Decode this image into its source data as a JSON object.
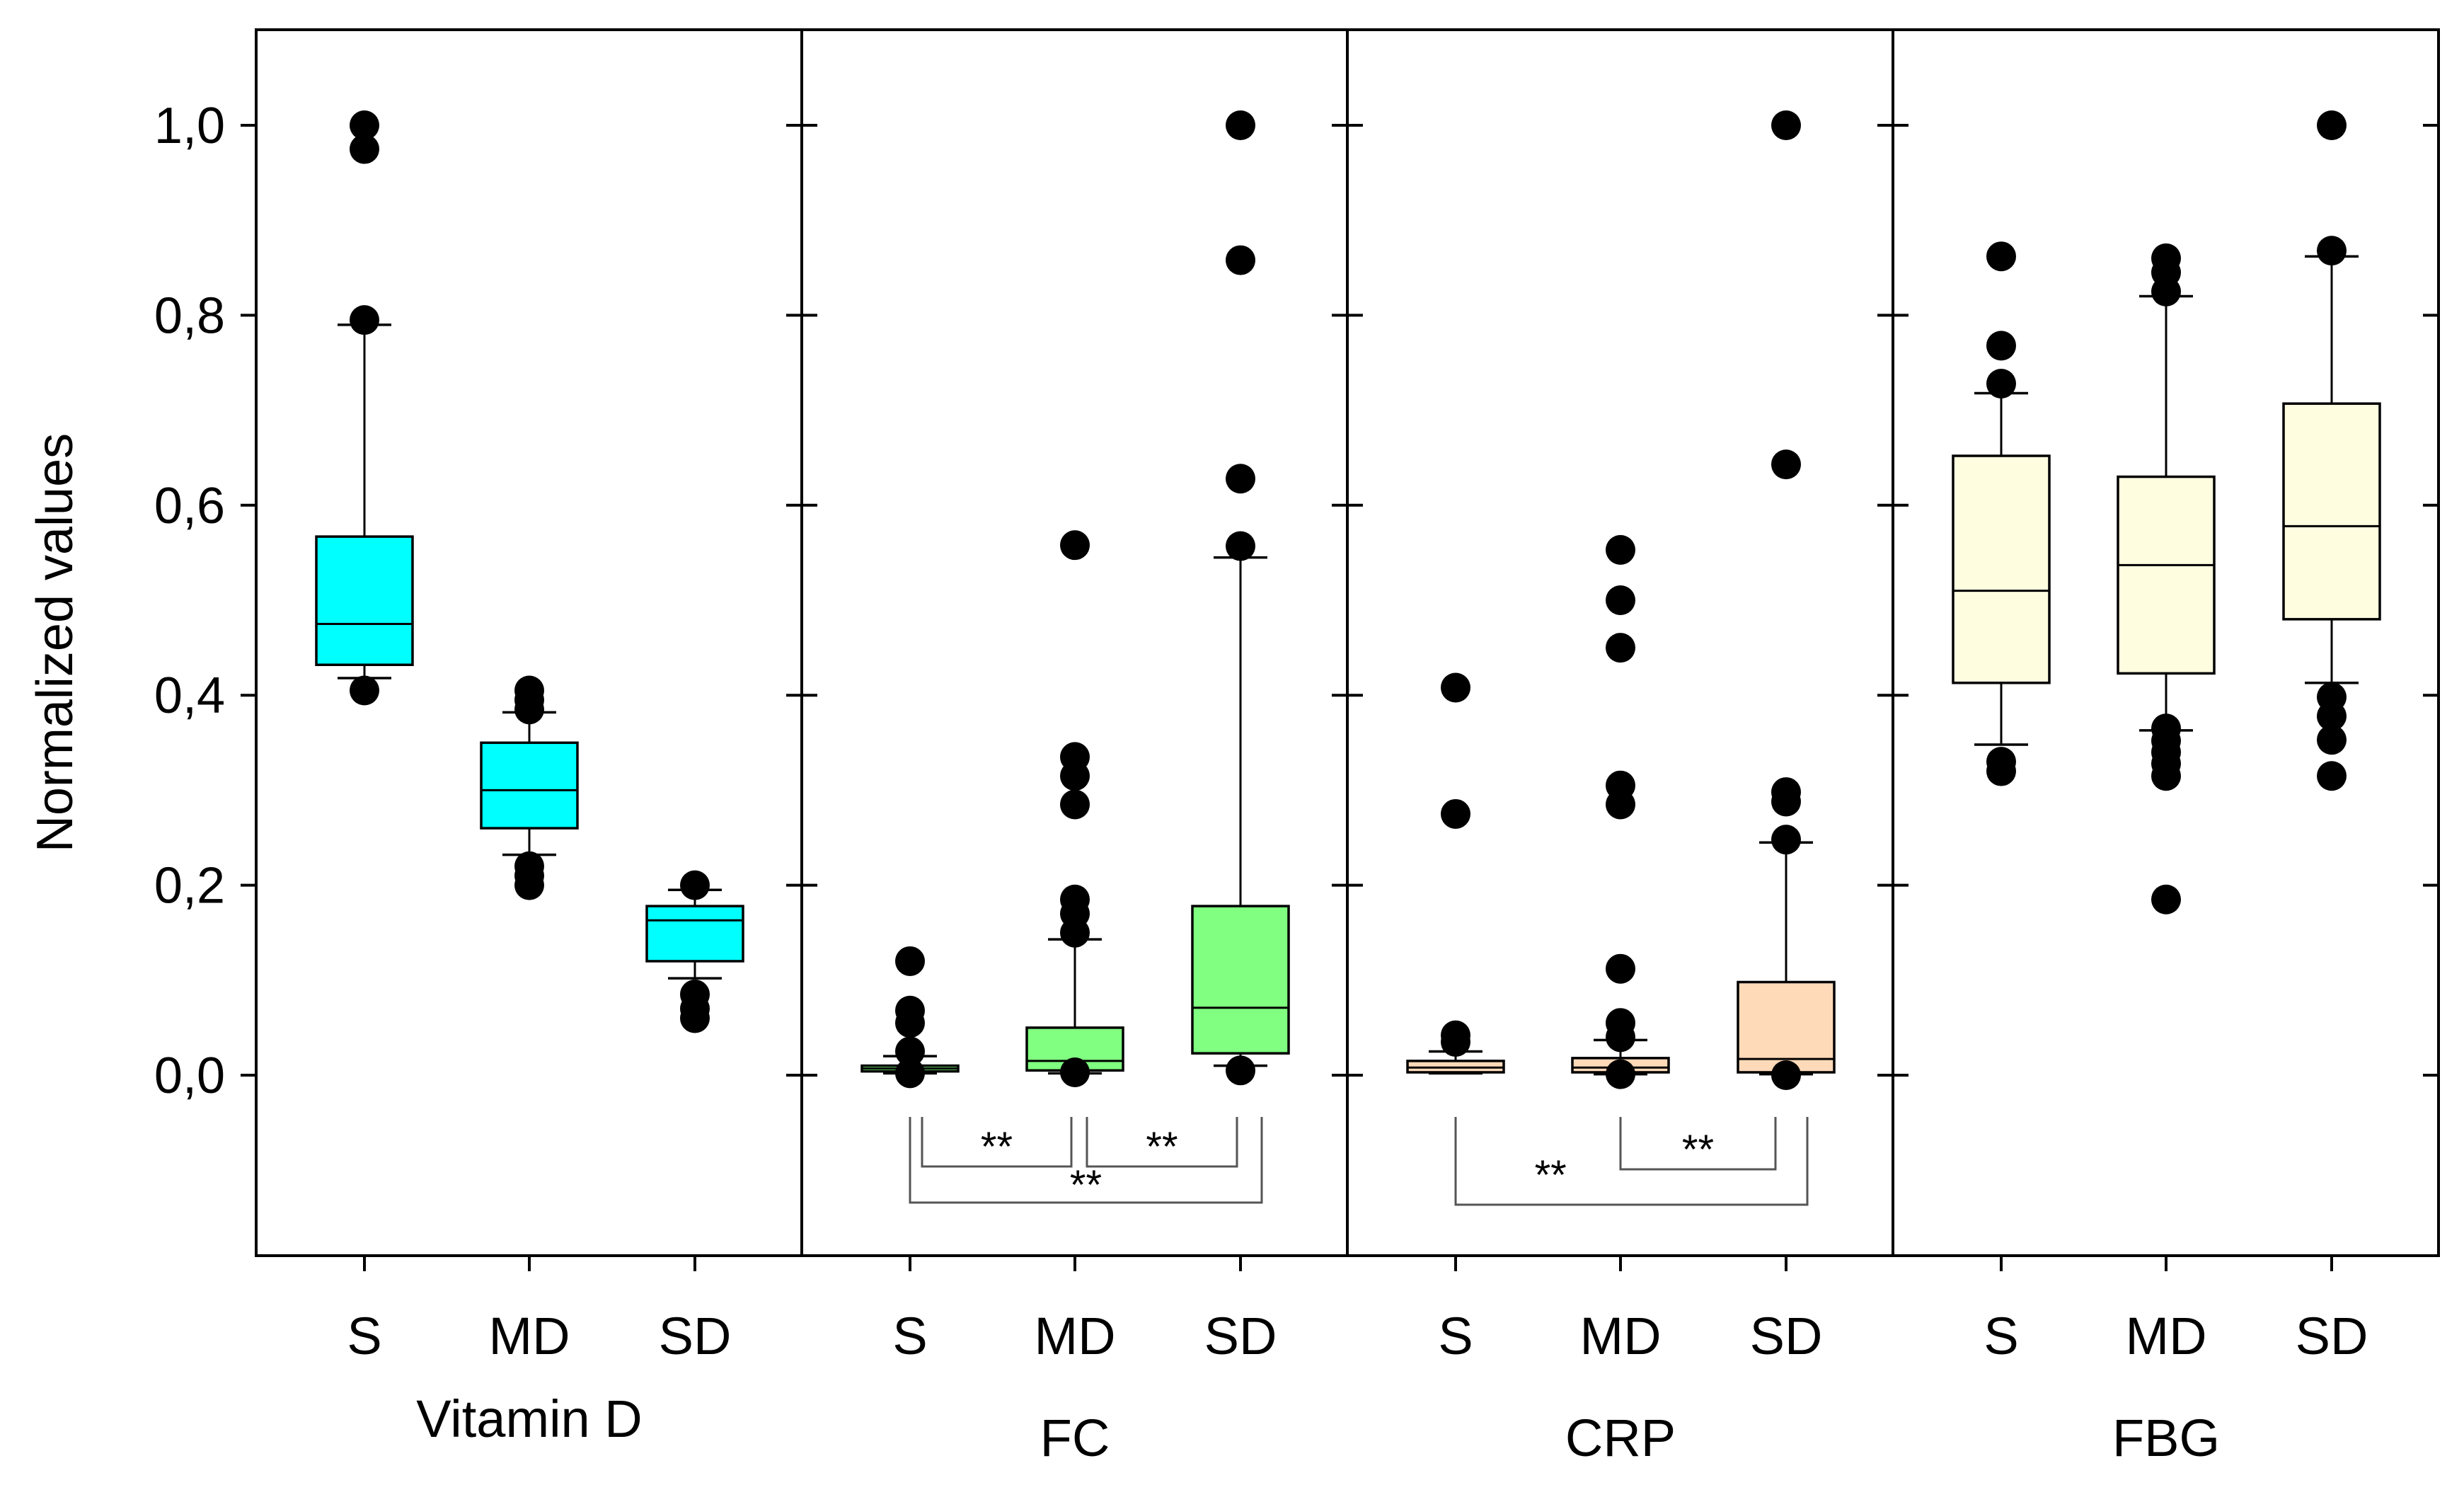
{
  "chart_data": {
    "type": "box",
    "ylabel": "Normalized values",
    "ylim": [
      -0.19,
      1.1
    ],
    "yticks": [
      0.0,
      0.2,
      0.4,
      0.6,
      0.8,
      1.0
    ],
    "ytick_labels": [
      "0,0",
      "0,2",
      "0,4",
      "0,6",
      "0,8",
      "1,0"
    ],
    "grid": false,
    "legend": "none",
    "panels": [
      {
        "label": "Vitamin D",
        "color": "#00FFFF",
        "groups": [
          {
            "category": "S",
            "whisker_low": 0.418,
            "q1": 0.432,
            "median": 0.475,
            "q3": 0.567,
            "whisker_high": 0.79,
            "outliers": [
              0.405,
              0.795,
              0.975,
              1.0
            ]
          },
          {
            "category": "MD",
            "whisker_low": 0.232,
            "q1": 0.26,
            "median": 0.3,
            "q3": 0.35,
            "whisker_high": 0.382,
            "outliers": [
              0.2,
              0.21,
              0.22,
              0.385,
              0.395,
              0.405
            ]
          },
          {
            "category": "SD",
            "whisker_low": 0.102,
            "q1": 0.12,
            "median": 0.163,
            "q3": 0.178,
            "whisker_high": 0.195,
            "outliers": [
              0.06,
              0.07,
              0.085,
              0.2
            ]
          }
        ],
        "significance": []
      },
      {
        "label": "FC",
        "color": "#80FF80",
        "groups": [
          {
            "category": "S",
            "whisker_low": 0.002,
            "q1": 0.004,
            "median": 0.007,
            "q3": 0.01,
            "whisker_high": 0.02,
            "outliers": [
              0.002,
              0.025,
              0.055,
              0.068,
              0.12
            ]
          },
          {
            "category": "MD",
            "whisker_low": 0.002,
            "q1": 0.005,
            "median": 0.015,
            "q3": 0.05,
            "whisker_high": 0.143,
            "outliers": [
              0.003,
              0.15,
              0.17,
              0.185,
              0.285,
              0.315,
              0.335,
              0.558
            ]
          },
          {
            "category": "SD",
            "whisker_low": 0.01,
            "q1": 0.023,
            "median": 0.071,
            "q3": 0.178,
            "whisker_high": 0.545,
            "outliers": [
              0.005,
              0.557,
              0.628,
              0.858,
              1.0
            ]
          }
        ],
        "significance": [
          {
            "from": "S",
            "to": "MD",
            "label": "**"
          },
          {
            "from": "MD",
            "to": "SD",
            "label": "**"
          },
          {
            "from": "S",
            "to": "SD",
            "label": "**"
          }
        ]
      },
      {
        "label": "CRP",
        "color": "#FFDAB9",
        "groups": [
          {
            "category": "S",
            "whisker_low": 0.002,
            "q1": 0.003,
            "median": 0.008,
            "q3": 0.015,
            "whisker_high": 0.025,
            "outliers": [
              0.035,
              0.042,
              0.275,
              0.408
            ]
          },
          {
            "category": "MD",
            "whisker_low": 0.001,
            "q1": 0.003,
            "median": 0.008,
            "q3": 0.018,
            "whisker_high": 0.037,
            "outliers": [
              0.001,
              0.04,
              0.055,
              0.112,
              0.285,
              0.305,
              0.45,
              0.5,
              0.553
            ]
          },
          {
            "category": "SD",
            "whisker_low": 0.001,
            "q1": 0.003,
            "median": 0.017,
            "q3": 0.098,
            "whisker_high": 0.245,
            "outliers": [
              0.0,
              0.248,
              0.288,
              0.298,
              0.643,
              1.0
            ]
          }
        ],
        "significance": [
          {
            "from": "MD",
            "to": "SD",
            "label": "**"
          },
          {
            "from": "S",
            "to": "SD",
            "label": "**"
          }
        ]
      },
      {
        "label": "FBG",
        "color": "#FFFDE0",
        "groups": [
          {
            "category": "S",
            "whisker_low": 0.348,
            "q1": 0.413,
            "median": 0.51,
            "q3": 0.652,
            "whisker_high": 0.718,
            "outliers": [
              0.32,
              0.33,
              0.728,
              0.768,
              0.862
            ]
          },
          {
            "category": "MD",
            "whisker_low": 0.363,
            "q1": 0.423,
            "median": 0.537,
            "q3": 0.63,
            "whisker_high": 0.82,
            "outliers": [
              0.185,
              0.315,
              0.328,
              0.34,
              0.352,
              0.365,
              0.825,
              0.845,
              0.86
            ]
          },
          {
            "category": "SD",
            "whisker_low": 0.413,
            "q1": 0.48,
            "median": 0.578,
            "q3": 0.707,
            "whisker_high": 0.862,
            "outliers": [
              0.315,
              0.353,
              0.378,
              0.398,
              0.868,
              1.0
            ]
          }
        ],
        "significance": []
      }
    ]
  }
}
